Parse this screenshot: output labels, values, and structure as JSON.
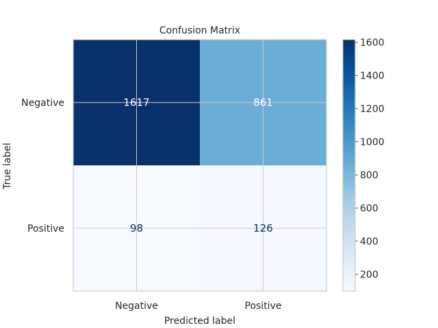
{
  "chart_data": {
    "type": "heatmap",
    "title": "Confusion Matrix",
    "xlabel": "Predicted label",
    "ylabel": "True label",
    "x_categories": [
      "Negative",
      "Positive"
    ],
    "y_categories": [
      "Negative",
      "Positive"
    ],
    "values": [
      [
        1617,
        861
      ],
      [
        98,
        126
      ]
    ],
    "colormap": "Blues",
    "grid": true,
    "colorbar": {
      "min": 98,
      "max": 1617,
      "ticks": [
        200,
        400,
        600,
        800,
        1000,
        1200,
        1400,
        1600
      ],
      "placement": "right"
    }
  },
  "colors": {
    "cell_1617": "#08306b",
    "cell_861": "#6baed6",
    "cell_98": "#f7fbff",
    "cell_126": "#f4f9fe",
    "text_on_dark": "#ffffff",
    "text_on_light": "#08306b",
    "frame": "#cccccc",
    "grid": "#cccccc",
    "label": "#262626"
  }
}
